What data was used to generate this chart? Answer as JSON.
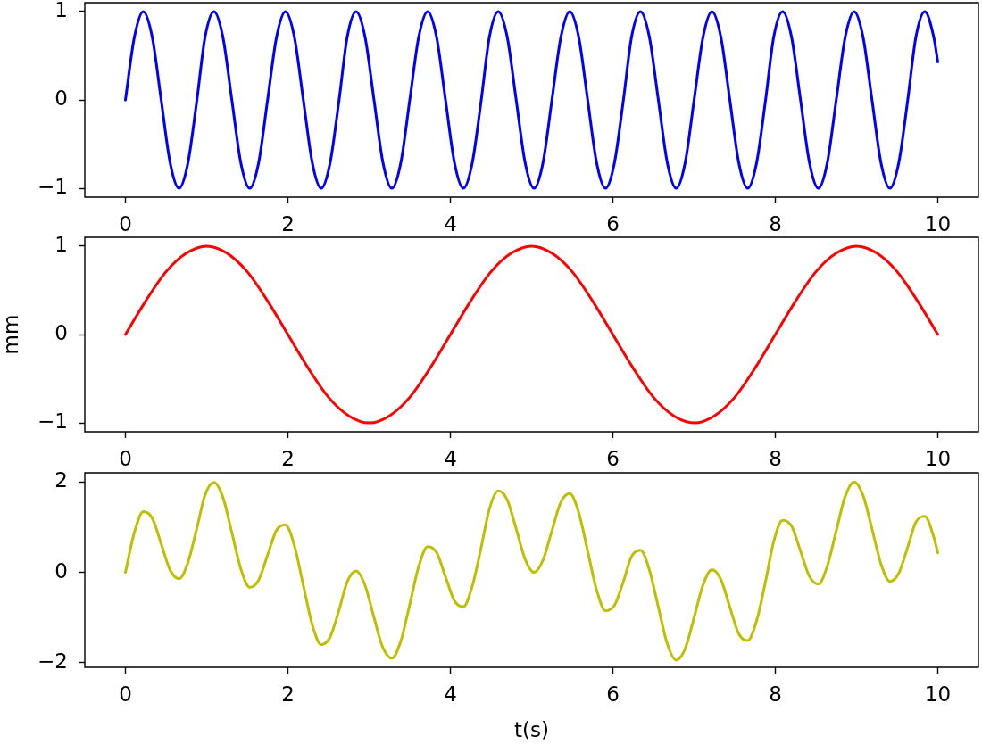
{
  "chart_data": [
    {
      "type": "line",
      "x": [
        0,
        0.11,
        0.22,
        0.33,
        0.44,
        0.55,
        0.66,
        0.77,
        0.88,
        0.98,
        1.09,
        1.2,
        1.31,
        1.42,
        1.53,
        1.64,
        1.75,
        1.86,
        1.97,
        2.08,
        2.19,
        2.3,
        2.41,
        2.52,
        2.63,
        2.73,
        2.84,
        2.95,
        3.06,
        3.17,
        3.28,
        3.39,
        3.5,
        3.61,
        3.72,
        3.83,
        3.94,
        4.05,
        4.16,
        4.27,
        4.38,
        4.48,
        4.59,
        4.7,
        4.81,
        4.92,
        5.03,
        5.14,
        5.25,
        5.36,
        5.47,
        5.58,
        5.69,
        5.8,
        5.91,
        6.02,
        6.13,
        6.23,
        6.34,
        6.45,
        6.56,
        6.67,
        6.78,
        6.89,
        7,
        7.11,
        7.22,
        7.33,
        7.44,
        7.55,
        7.66,
        7.77,
        7.88,
        7.98,
        8.09,
        8.2,
        8.31,
        8.42,
        8.53,
        8.64,
        8.75,
        8.86,
        8.97,
        9.08,
        9.19,
        9.3,
        9.41,
        9.52,
        9.63,
        9.73,
        9.84,
        9.95,
        10
      ],
      "series": [
        {
          "color": "#0000ff",
          "values": [
            0,
            0.71,
            1,
            0.71,
            0,
            -0.71,
            -1,
            -0.71,
            0,
            0.71,
            1,
            0.71,
            0,
            -0.71,
            -1,
            -0.71,
            0,
            0.71,
            1,
            0.71,
            0,
            -0.71,
            -1,
            -0.71,
            0,
            0.71,
            1,
            0.71,
            0,
            -0.71,
            -1,
            -0.71,
            0,
            0.71,
            1,
            0.71,
            0,
            -0.71,
            -1,
            -0.71,
            0,
            0.71,
            1,
            0.71,
            0,
            -0.71,
            -1,
            -0.71,
            0,
            0.71,
            1,
            0.71,
            0,
            -0.71,
            -1,
            -0.71,
            0,
            0.71,
            1,
            0.71,
            0,
            -0.71,
            -1,
            -0.71,
            0,
            0.71,
            1,
            0.71,
            0,
            -0.71,
            -1,
            -0.71,
            0,
            0.71,
            1,
            0.71,
            0,
            -0.71,
            -1,
            -0.71,
            0,
            0.71,
            1,
            0.71,
            0,
            -0.71,
            -1,
            -0.71,
            0,
            0.71,
            1,
            0.71,
            0.43
          ]
        }
      ],
      "xlim": [
        -0.5,
        10.5
      ],
      "xticks": [
        0,
        2,
        4,
        6,
        8,
        10
      ],
      "ylim": [
        -1.1,
        1.1
      ],
      "yticks": [
        -1,
        0,
        1
      ]
    },
    {
      "type": "line",
      "ylabel": "mm",
      "x": [
        0,
        0.25,
        0.5,
        0.75,
        1,
        1.25,
        1.5,
        1.75,
        2,
        2.25,
        2.5,
        2.75,
        3,
        3.25,
        3.5,
        3.75,
        4,
        4.25,
        4.5,
        4.75,
        5,
        5.25,
        5.5,
        5.75,
        6,
        6.25,
        6.5,
        6.75,
        7,
        7.25,
        7.5,
        7.75,
        8,
        8.25,
        8.5,
        8.75,
        9,
        9.25,
        9.5,
        9.75,
        10
      ],
      "series": [
        {
          "color": "#ff0000",
          "values": [
            0,
            0.38,
            0.71,
            0.92,
            1,
            0.92,
            0.71,
            0.38,
            0,
            -0.38,
            -0.71,
            -0.92,
            -1,
            -0.92,
            -0.71,
            -0.38,
            0,
            0.38,
            0.71,
            0.92,
            1,
            0.92,
            0.71,
            0.38,
            0,
            -0.38,
            -0.71,
            -0.92,
            -1,
            -0.92,
            -0.71,
            -0.38,
            0,
            0.38,
            0.71,
            0.92,
            1,
            0.92,
            0.71,
            0.38,
            0
          ]
        }
      ],
      "xlim": [
        -0.5,
        10.5
      ],
      "xticks": [
        0,
        2,
        4,
        6,
        8,
        10
      ],
      "ylim": [
        -1.1,
        1.1
      ],
      "yticks": [
        -1,
        0,
        1
      ]
    },
    {
      "type": "line",
      "xlabel": "t(s)",
      "x": [
        0,
        0.11,
        0.22,
        0.33,
        0.44,
        0.55,
        0.66,
        0.77,
        0.88,
        0.98,
        1.09,
        1.2,
        1.31,
        1.42,
        1.53,
        1.64,
        1.75,
        1.86,
        1.97,
        2.08,
        2.19,
        2.3,
        2.41,
        2.52,
        2.63,
        2.73,
        2.84,
        2.95,
        3.06,
        3.17,
        3.28,
        3.39,
        3.5,
        3.61,
        3.72,
        3.83,
        3.94,
        4.05,
        4.16,
        4.27,
        4.38,
        4.48,
        4.59,
        4.7,
        4.81,
        4.92,
        5.03,
        5.14,
        5.25,
        5.36,
        5.47,
        5.58,
        5.69,
        5.8,
        5.91,
        6.02,
        6.13,
        6.23,
        6.34,
        6.45,
        6.56,
        6.67,
        6.78,
        6.89,
        7,
        7.11,
        7.22,
        7.33,
        7.44,
        7.55,
        7.66,
        7.77,
        7.88,
        7.98,
        8.09,
        8.2,
        8.31,
        8.42,
        8.53,
        8.64,
        8.75,
        8.86,
        8.97,
        9.08,
        9.19,
        9.3,
        9.41,
        9.52,
        9.63,
        9.73,
        9.84,
        9.95,
        10
      ],
      "series": [
        {
          "color": "#bfbf00",
          "values": [
            0,
            0.88,
            1.34,
            1.2,
            0.63,
            0.05,
            -0.14,
            0.22,
            0.98,
            1.71,
            1.99,
            1.66,
            0.88,
            0.08,
            -0.33,
            -0.17,
            0.38,
            0.93,
            1.05,
            0.59,
            -0.29,
            -1.16,
            -1.6,
            -1.43,
            -0.83,
            -0.21,
            0.03,
            -0.29,
            -1,
            -1.67,
            -1.9,
            -1.52,
            -0.71,
            0.13,
            0.57,
            0.44,
            -0.1,
            -0.63,
            -0.76,
            -0.3,
            0.56,
            1.4,
            1.8,
            1.6,
            0.96,
            0.29,
            0,
            0.27,
            0.92,
            1.55,
            1.74,
            1.32,
            0.47,
            -0.39,
            -0.85,
            -0.73,
            -0.2,
            0.35,
            0.49,
            0.05,
            -0.77,
            -1.58,
            -1.94,
            -1.69,
            -1,
            -0.28,
            0.06,
            -0.16,
            -0.77,
            -1.36,
            -1.51,
            -1.07,
            -0.2,
            0.68,
            1.15,
            1.02,
            0.47,
            -0.09,
            -0.26,
            0.14,
            0.92,
            1.68,
            2,
            1.7,
            0.96,
            0.19,
            -0.2,
            -0.02,
            0.56,
            1.11,
            1.24,
            0.78,
            0.43
          ]
        }
      ],
      "xlim": [
        -0.5,
        10.5
      ],
      "xticks": [
        0,
        2,
        4,
        6,
        8,
        10
      ],
      "ylim": [
        -2.1,
        2.2
      ],
      "yticks": [
        -2,
        0,
        2
      ]
    }
  ]
}
